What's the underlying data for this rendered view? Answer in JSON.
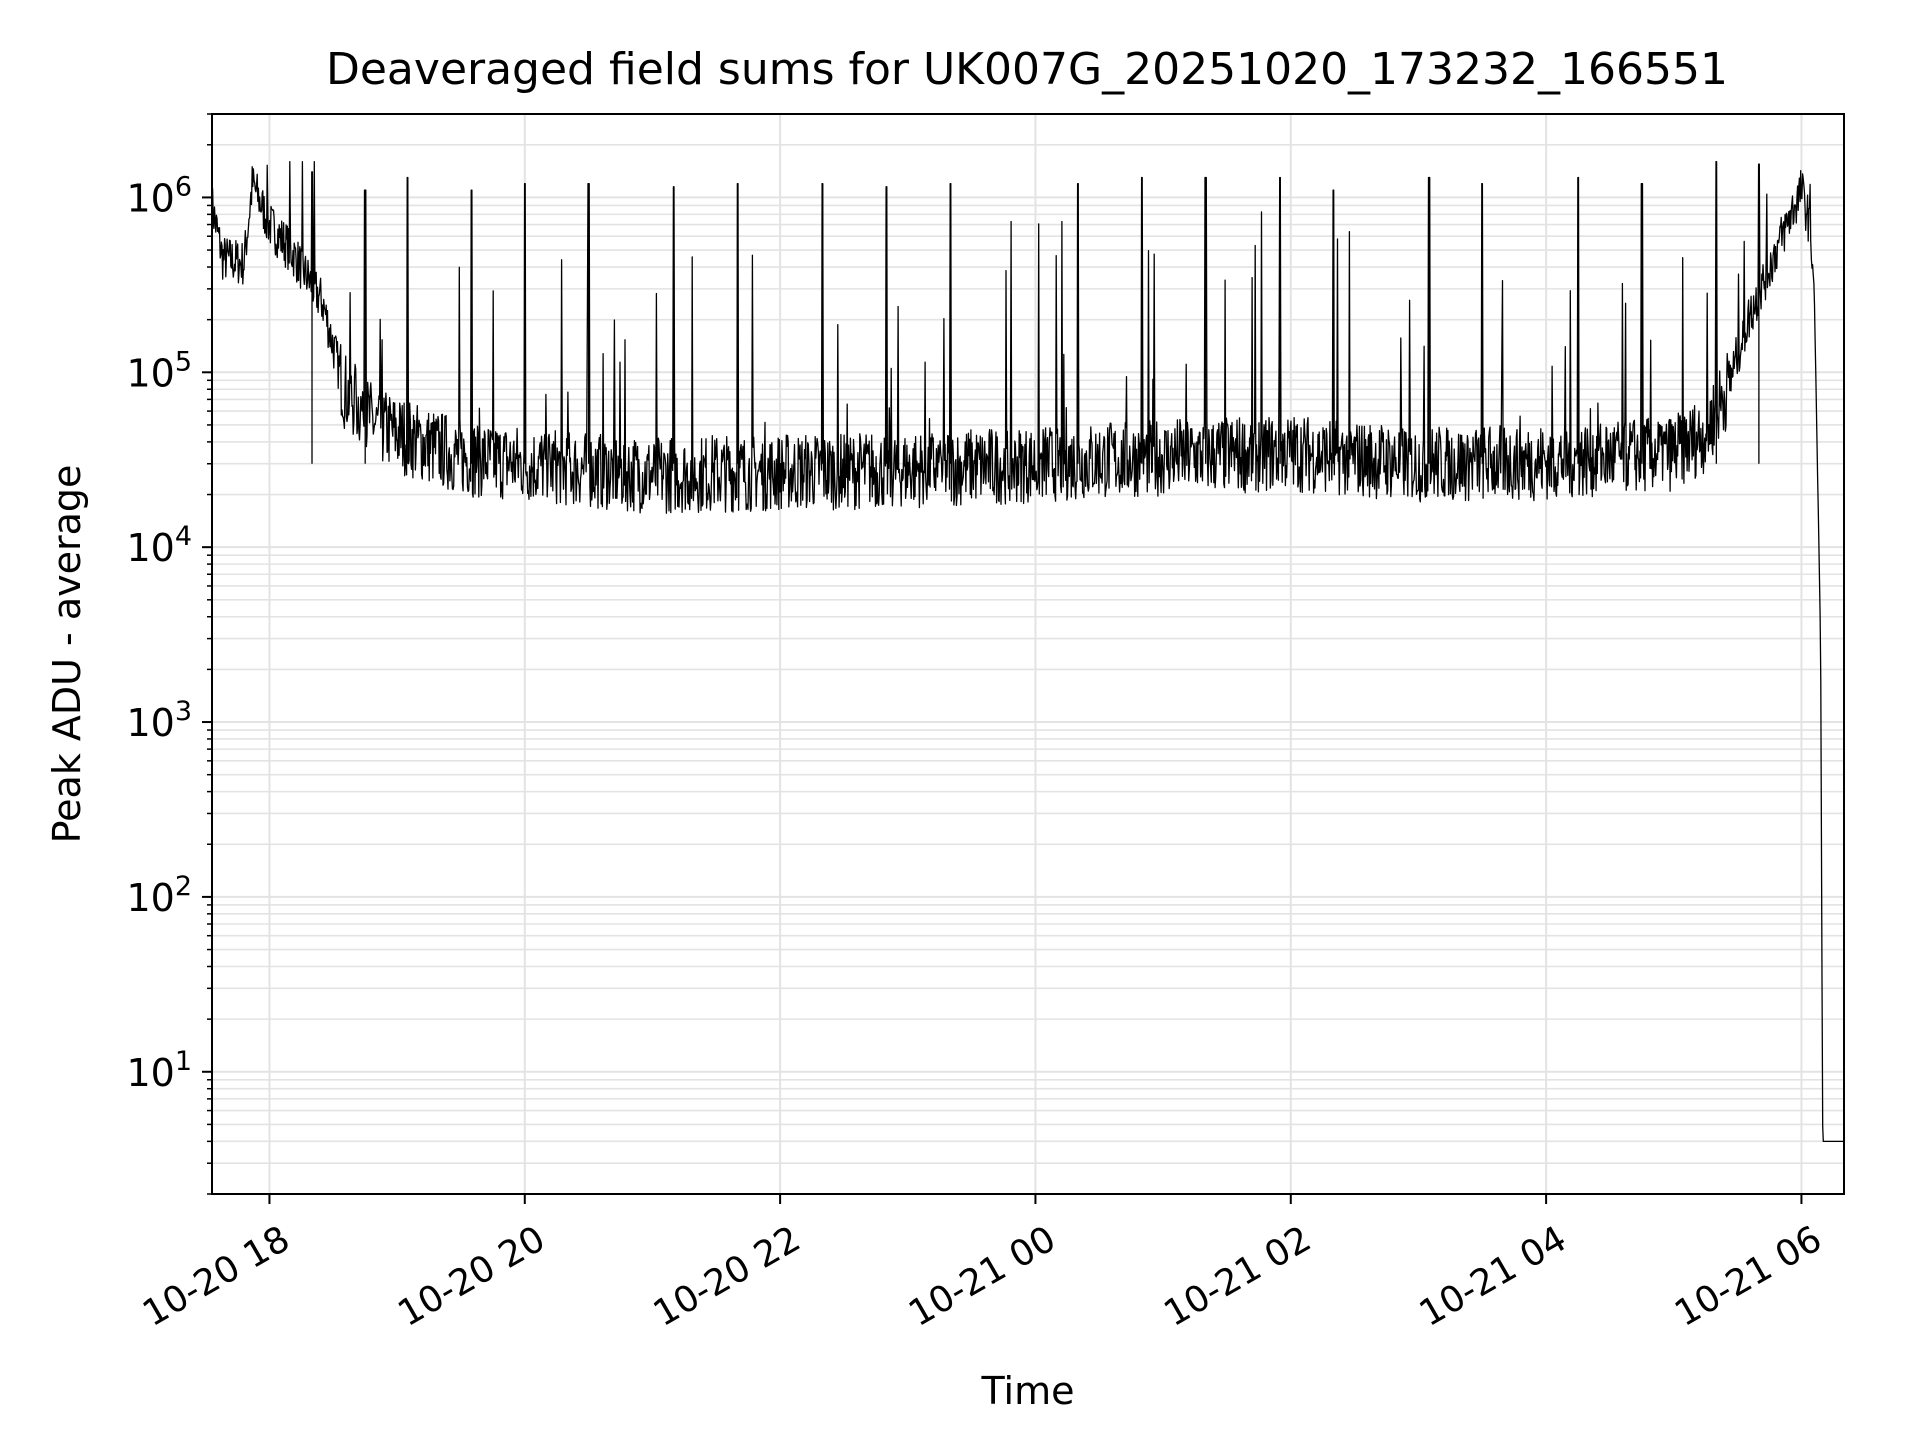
{
  "chart_data": {
    "type": "line",
    "title": "Deaveraged field sums for UK007G_20251020_173232_166551",
    "xlabel": "Time",
    "ylabel": "Peak ADU - average",
    "yscale": "log",
    "ylim": [
      2,
      3000000
    ],
    "xlim": [
      "2025-10-20 17:33",
      "2025-10-21 06:20"
    ],
    "grid": true,
    "x_ticks": [
      {
        "value": "2025-10-20 18:00",
        "label": "10-20 18"
      },
      {
        "value": "2025-10-20 20:00",
        "label": "10-20 20"
      },
      {
        "value": "2025-10-20 22:00",
        "label": "10-20 22"
      },
      {
        "value": "2025-10-21 00:00",
        "label": "10-21 00"
      },
      {
        "value": "2025-10-21 02:00",
        "label": "10-21 02"
      },
      {
        "value": "2025-10-21 04:00",
        "label": "10-21 04"
      },
      {
        "value": "2025-10-21 06:00",
        "label": "10-21 06"
      }
    ],
    "y_ticks": [
      {
        "value": 10,
        "base": "10",
        "exp": "1"
      },
      {
        "value": 100,
        "base": "10",
        "exp": "2"
      },
      {
        "value": 1000,
        "base": "10",
        "exp": "3"
      },
      {
        "value": 10000,
        "base": "10",
        "exp": "4"
      },
      {
        "value": 100000,
        "base": "10",
        "exp": "5"
      },
      {
        "value": 1000000,
        "base": "10",
        "exp": "6"
      }
    ],
    "series": [
      {
        "color": "#000000",
        "points": [
          {
            "t": "2025-10-20 17:33",
            "y": 900000
          },
          {
            "t": "2025-10-20 17:38",
            "y": 450000
          },
          {
            "t": "2025-10-20 17:48",
            "y": 420000
          },
          {
            "t": "2025-10-20 17:52",
            "y": 1200000
          },
          {
            "t": "2025-10-20 18:00",
            "y": 700000
          },
          {
            "t": "2025-10-20 18:10",
            "y": 500000
          },
          {
            "t": "2025-10-20 18:25",
            "y": 250000
          },
          {
            "t": "2025-10-20 18:35",
            "y": 80000
          },
          {
            "t": "2025-10-20 18:50",
            "y": 50000
          },
          {
            "t": "2025-10-20 19:10",
            "y": 40000
          },
          {
            "t": "2025-10-20 19:30",
            "y": 33000
          },
          {
            "t": "2025-10-20 20:00",
            "y": 30000
          },
          {
            "t": "2025-10-20 21:00",
            "y": 26000
          },
          {
            "t": "2025-10-20 22:00",
            "y": 27000
          },
          {
            "t": "2025-10-20 23:00",
            "y": 28000
          },
          {
            "t": "2025-10-21 00:00",
            "y": 30000
          },
          {
            "t": "2025-10-21 01:00",
            "y": 33000
          },
          {
            "t": "2025-10-21 02:00",
            "y": 35000
          },
          {
            "t": "2025-10-21 03:00",
            "y": 30000
          },
          {
            "t": "2025-10-21 04:00",
            "y": 31000
          },
          {
            "t": "2025-10-21 05:00",
            "y": 35000
          },
          {
            "t": "2025-10-21 05:15",
            "y": 45000
          },
          {
            "t": "2025-10-21 05:25",
            "y": 80000
          },
          {
            "t": "2025-10-21 05:35",
            "y": 200000
          },
          {
            "t": "2025-10-21 05:45",
            "y": 400000
          },
          {
            "t": "2025-10-21 05:55",
            "y": 800000
          },
          {
            "t": "2025-10-21 06:00",
            "y": 1100000
          },
          {
            "t": "2025-10-21 06:04",
            "y": 700000
          },
          {
            "t": "2025-10-21 06:06",
            "y": 300000
          },
          {
            "t": "2025-10-21 06:09",
            "y": 3000
          },
          {
            "t": "2025-10-21 06:10",
            "y": 4
          },
          {
            "t": "2025-10-21 06:20",
            "y": 4
          }
        ],
        "spikes": [
          {
            "t": "2025-10-20 18:20",
            "y": 1400000
          },
          {
            "t": "2025-10-20 18:45",
            "y": 1100000
          },
          {
            "t": "2025-10-20 19:05",
            "y": 1300000
          },
          {
            "t": "2025-10-20 19:35",
            "y": 1100000
          },
          {
            "t": "2025-10-20 20:00",
            "y": 1200000
          },
          {
            "t": "2025-10-20 20:30",
            "y": 1200000
          },
          {
            "t": "2025-10-20 21:10",
            "y": 1150000
          },
          {
            "t": "2025-10-20 21:40",
            "y": 1200000
          },
          {
            "t": "2025-10-20 22:20",
            "y": 1200000
          },
          {
            "t": "2025-10-20 22:50",
            "y": 1150000
          },
          {
            "t": "2025-10-20 23:20",
            "y": 1200000
          },
          {
            "t": "2025-10-21 00:20",
            "y": 1200000
          },
          {
            "t": "2025-10-21 00:50",
            "y": 1300000
          },
          {
            "t": "2025-10-21 01:20",
            "y": 1300000
          },
          {
            "t": "2025-10-21 01:55",
            "y": 1300000
          },
          {
            "t": "2025-10-21 02:20",
            "y": 1100000
          },
          {
            "t": "2025-10-21 03:05",
            "y": 1300000
          },
          {
            "t": "2025-10-21 03:30",
            "y": 1200000
          },
          {
            "t": "2025-10-21 04:15",
            "y": 1300000
          },
          {
            "t": "2025-10-21 04:45",
            "y": 1200000
          },
          {
            "t": "2025-10-21 05:20",
            "y": 1600000
          },
          {
            "t": "2025-10-21 05:40",
            "y": 1550000
          }
        ],
        "noise": {
          "low": 0.55,
          "high": 1.7
        }
      }
    ]
  }
}
